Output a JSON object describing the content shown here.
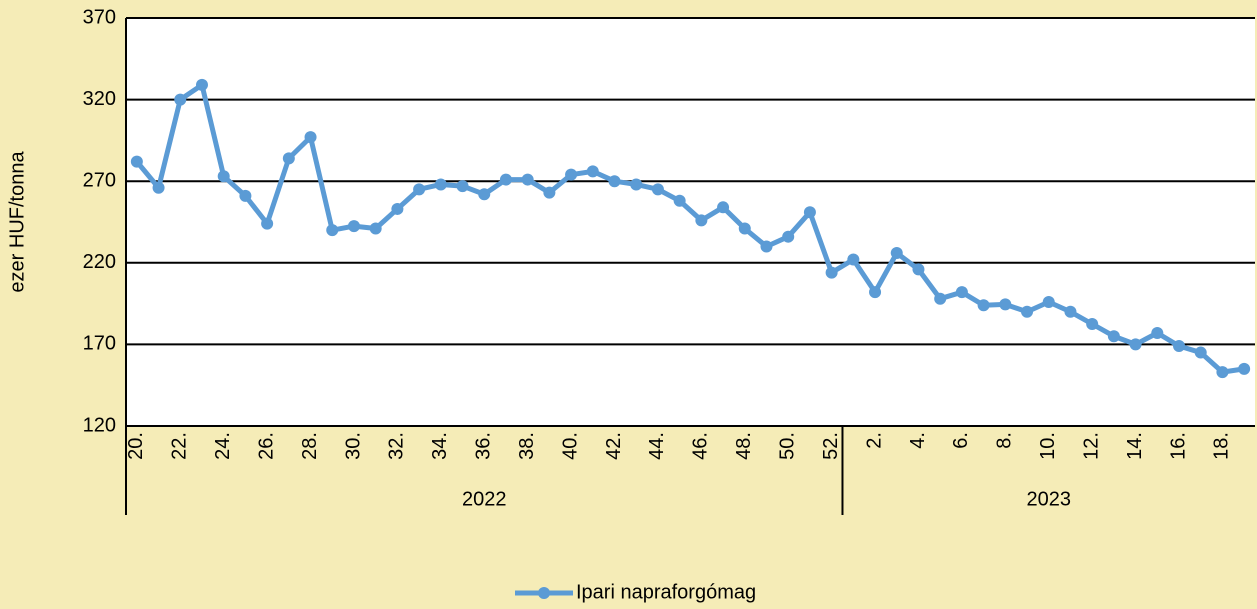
{
  "chart_data": {
    "type": "line",
    "y_label": "ezer HUF/tonna",
    "groups": [
      {
        "label": "2022",
        "categories": [
          "20.",
          null,
          "22.",
          null,
          "24.",
          null,
          "26.",
          null,
          "28.",
          null,
          "30.",
          null,
          "32.",
          null,
          "34.",
          null,
          "36.",
          null,
          "38.",
          null,
          "40.",
          null,
          "42.",
          null,
          "44.",
          null,
          "46.",
          null,
          "48.",
          null,
          "50.",
          null,
          "52."
        ]
      },
      {
        "label": "2023",
        "categories": [
          null,
          "2.",
          null,
          "4.",
          null,
          "6.",
          null,
          "8.",
          null,
          "10.",
          null,
          "12.",
          null,
          "14.",
          null,
          "16.",
          null,
          "18.",
          null
        ]
      }
    ],
    "series": [
      {
        "name": "Ipari napraforgómag",
        "color": "#5b9bd5",
        "values": [
          282,
          266,
          320,
          329,
          273,
          261,
          244,
          284,
          297,
          240,
          242.5,
          241,
          253,
          265,
          268,
          267,
          262,
          271,
          271,
          263,
          274,
          276,
          270,
          268,
          265,
          258,
          246,
          254,
          241,
          230,
          236,
          251,
          214,
          222,
          202,
          226,
          216,
          198,
          202,
          194,
          194.5,
          190,
          196,
          190,
          182.5,
          175,
          170,
          177,
          169,
          165,
          153,
          155
        ]
      }
    ],
    "ylim": [
      120,
      370
    ],
    "yticks": [
      120,
      170,
      220,
      270,
      320,
      370
    ],
    "grid": true,
    "legend": "bottom"
  }
}
